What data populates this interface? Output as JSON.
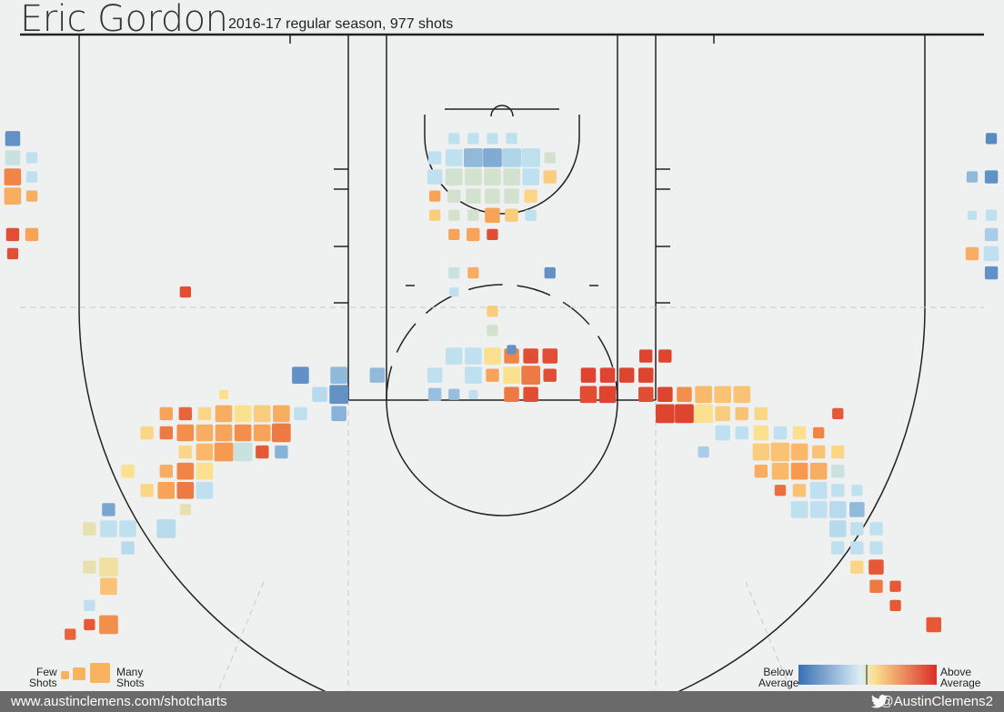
{
  "header": {
    "player": "Eric Gordon",
    "subtitle": "2016-17 regular season, 977 shots"
  },
  "legend": {
    "few": "Few\nShots",
    "many": "Many\nShots",
    "below": "Below\nAverage",
    "above": "Above\nAverage"
  },
  "footer": {
    "url": "www.austinclemens.com/shotcharts",
    "handle": "@AustinClemens2"
  },
  "colors": {
    "background": "#eff0f0",
    "scale": [
      "#3a6fb4",
      "#bfe1ef",
      "#fbe08f",
      "#d92e27"
    ]
  },
  "chart_data": {
    "type": "heatmap",
    "description_units": "court feet; x from -25 (left sideline) to 25, y from -5.25 (baseline) upward; size 1-5 = shot volume, value -1 (below avg) to 1 (above avg)",
    "bins": [
      {
        "x": -22.5,
        "y": 27.75,
        "s": 1.5,
        "v": 0.75
      },
      {
        "x": -21.5,
        "y": 27.25,
        "s": 1.5,
        "v": 0.8
      },
      {
        "x": -20.5,
        "y": 27.25,
        "s": 3.5,
        "v": 0.55
      },
      {
        "x": -21.5,
        "y": 26.25,
        "s": 1.5,
        "v": -0.15
      },
      {
        "x": -20.5,
        "y": 25.25,
        "s": 3.0,
        "v": 0.3
      },
      {
        "x": -21.5,
        "y": 24.25,
        "s": 2.0,
        "v": 0.05
      },
      {
        "x": -20.5,
        "y": 24.25,
        "s": 3.5,
        "v": 0.1
      },
      {
        "x": -19.5,
        "y": 23.25,
        "s": 2.0,
        "v": -0.2
      },
      {
        "x": -21.5,
        "y": 22.25,
        "s": 2.0,
        "v": 0.05
      },
      {
        "x": -20.5,
        "y": 22.25,
        "s": 3.0,
        "v": -0.15
      },
      {
        "x": -19.5,
        "y": 22.25,
        "s": 3.0,
        "v": -0.15
      },
      {
        "x": -20.5,
        "y": 21.25,
        "s": 2.0,
        "v": -0.6
      },
      {
        "x": -17.5,
        "y": 22.25,
        "s": 3.5,
        "v": -0.2
      },
      {
        "x": -16.5,
        "y": 21.25,
        "s": 1.5,
        "v": 0.05
      },
      {
        "x": -18.5,
        "y": 20.25,
        "s": 2.0,
        "v": 0.2
      },
      {
        "x": -17.5,
        "y": 20.25,
        "s": 3.0,
        "v": 0.45
      },
      {
        "x": -16.5,
        "y": 20.25,
        "s": 3.0,
        "v": 0.65
      },
      {
        "x": -15.5,
        "y": 20.25,
        "s": 3.0,
        "v": -0.15
      },
      {
        "x": -19.5,
        "y": 19.25,
        "s": 2.0,
        "v": 0.15
      },
      {
        "x": -17.5,
        "y": 19.25,
        "s": 2.0,
        "v": 0.4
      },
      {
        "x": -16.5,
        "y": 19.25,
        "s": 3.0,
        "v": 0.6
      },
      {
        "x": -15.5,
        "y": 19.25,
        "s": 3.0,
        "v": 0.15
      },
      {
        "x": -16.5,
        "y": 18.25,
        "s": 2.0,
        "v": 0.2
      },
      {
        "x": -15.5,
        "y": 18.25,
        "s": 3.0,
        "v": 0.35
      },
      {
        "x": -14.5,
        "y": 18.25,
        "s": 3.5,
        "v": 0.5
      },
      {
        "x": -13.5,
        "y": 18.25,
        "s": 3.5,
        "v": -0.1
      },
      {
        "x": -12.5,
        "y": 18.25,
        "s": 2.0,
        "v": 0.8
      },
      {
        "x": -11.5,
        "y": 18.25,
        "s": 2.0,
        "v": -0.5
      },
      {
        "x": -18.5,
        "y": 17.25,
        "s": 2.0,
        "v": 0.2
      },
      {
        "x": -17.5,
        "y": 17.25,
        "s": 2.0,
        "v": 0.65
      },
      {
        "x": -16.5,
        "y": 17.25,
        "s": 3.0,
        "v": 0.55
      },
      {
        "x": -15.5,
        "y": 17.25,
        "s": 3.0,
        "v": 0.4
      },
      {
        "x": -14.5,
        "y": 17.25,
        "s": 3.0,
        "v": 0.45
      },
      {
        "x": -13.5,
        "y": 17.25,
        "s": 3.0,
        "v": 0.55
      },
      {
        "x": -12.5,
        "y": 17.25,
        "s": 3.0,
        "v": 0.45
      },
      {
        "x": -11.5,
        "y": 17.25,
        "s": 3.5,
        "v": 0.65
      },
      {
        "x": -17.5,
        "y": 16.25,
        "s": 2.0,
        "v": 0.45
      },
      {
        "x": -16.5,
        "y": 16.25,
        "s": 2.0,
        "v": 0.75
      },
      {
        "x": -15.5,
        "y": 16.25,
        "s": 2.0,
        "v": 0.2
      },
      {
        "x": -14.5,
        "y": 16.25,
        "s": 3.0,
        "v": 0.4
      },
      {
        "x": -13.5,
        "y": 16.25,
        "s": 3.0,
        "v": 0.15
      },
      {
        "x": -12.5,
        "y": 16.25,
        "s": 3.0,
        "v": 0.25
      },
      {
        "x": -11.5,
        "y": 16.25,
        "s": 3.0,
        "v": 0.4
      },
      {
        "x": -10.5,
        "y": 16.25,
        "s": 2.0,
        "v": -0.15
      },
      {
        "x": -14.5,
        "y": 15.25,
        "s": 1.0,
        "v": 0.15
      },
      {
        "x": -8.5,
        "y": 16.25,
        "s": 2.5,
        "v": -0.5
      },
      {
        "x": -9.5,
        "y": 15.25,
        "s": 2.5,
        "v": -0.2
      },
      {
        "x": -8.5,
        "y": 15.25,
        "s": 3.5,
        "v": -0.75
      },
      {
        "x": -8.5,
        "y": 14.25,
        "s": 3.0,
        "v": -0.45
      },
      {
        "x": -6.5,
        "y": 14.25,
        "s": 2.5,
        "v": -0.45
      },
      {
        "x": -10.5,
        "y": 14.25,
        "s": 3.0,
        "v": -0.75
      },
      {
        "x": -3.5,
        "y": 15.25,
        "s": 2.0,
        "v": -0.4
      },
      {
        "x": -2.5,
        "y": 15.25,
        "s": 1.5,
        "v": -0.4
      },
      {
        "x": -1.5,
        "y": 15.25,
        "s": 1.0,
        "v": -0.15
      },
      {
        "x": -3.5,
        "y": 14.25,
        "s": 2.5,
        "v": -0.15
      },
      {
        "x": -1.5,
        "y": 14.25,
        "s": 3.0,
        "v": -0.15
      },
      {
        "x": -0.5,
        "y": 14.25,
        "s": 2.0,
        "v": 0.45
      },
      {
        "x": 0.5,
        "y": 14.25,
        "s": 3.0,
        "v": 0.15
      },
      {
        "x": 1.5,
        "y": 14.25,
        "s": 3.5,
        "v": 0.65
      },
      {
        "x": 2.5,
        "y": 14.25,
        "s": 2.0,
        "v": 0.85
      },
      {
        "x": -2.5,
        "y": 13.25,
        "s": 3.0,
        "v": -0.15
      },
      {
        "x": -1.5,
        "y": 13.25,
        "s": 3.0,
        "v": -0.15
      },
      {
        "x": -0.5,
        "y": 13.25,
        "s": 3.0,
        "v": 0.15
      },
      {
        "x": 0.5,
        "y": 13.25,
        "s": 2.5,
        "v": 0.6
      },
      {
        "x": 1.5,
        "y": 13.25,
        "s": 2.5,
        "v": 0.85
      },
      {
        "x": 2.5,
        "y": 13.25,
        "s": 2.5,
        "v": 0.85
      },
      {
        "x": 0.5,
        "y": 15.25,
        "s": 2.5,
        "v": 0.65
      },
      {
        "x": 1.5,
        "y": 15.25,
        "s": 2.5,
        "v": 0.85
      },
      {
        "x": 4.5,
        "y": 15.25,
        "s": 3.0,
        "v": 0.85
      },
      {
        "x": 5.5,
        "y": 15.25,
        "s": 3.0,
        "v": 0.9
      },
      {
        "x": 4.5,
        "y": 14.25,
        "s": 2.5,
        "v": 0.9
      },
      {
        "x": 5.5,
        "y": 14.25,
        "s": 2.5,
        "v": 0.9
      },
      {
        "x": 6.5,
        "y": 14.25,
        "s": 2.5,
        "v": 0.9
      },
      {
        "x": 7.5,
        "y": 14.25,
        "s": 2.5,
        "v": 0.9
      },
      {
        "x": 7.5,
        "y": 15.25,
        "s": 2.5,
        "v": 0.85
      },
      {
        "x": 7.5,
        "y": 13.25,
        "s": 2.0,
        "v": 0.9
      },
      {
        "x": 8.5,
        "y": 13.25,
        "s": 2.0,
        "v": 0.9
      },
      {
        "x": 8.5,
        "y": 16.25,
        "s": 3.5,
        "v": 0.9
      },
      {
        "x": 9.5,
        "y": 16.25,
        "s": 3.5,
        "v": 0.9
      },
      {
        "x": 10.5,
        "y": 16.25,
        "s": 3.5,
        "v": 0.15
      },
      {
        "x": 11.5,
        "y": 16.25,
        "s": 2.5,
        "v": 0.25
      },
      {
        "x": 12.5,
        "y": 16.25,
        "s": 2.0,
        "v": 0.3
      },
      {
        "x": 13.5,
        "y": 16.25,
        "s": 2.0,
        "v": 0.2
      },
      {
        "x": 10.5,
        "y": 15.25,
        "s": 3.0,
        "v": 0.35
      },
      {
        "x": 11.5,
        "y": 15.25,
        "s": 3.0,
        "v": 0.3
      },
      {
        "x": 12.5,
        "y": 15.25,
        "s": 3.0,
        "v": 0.3
      },
      {
        "x": 9.5,
        "y": 15.25,
        "s": 2.5,
        "v": 0.55
      },
      {
        "x": 8.5,
        "y": 15.25,
        "s": 2.5,
        "v": 0.9
      },
      {
        "x": 11.5,
        "y": 17.25,
        "s": 2.5,
        "v": -0.15
      },
      {
        "x": 12.5,
        "y": 17.25,
        "s": 2.0,
        "v": -0.15
      },
      {
        "x": 13.5,
        "y": 17.25,
        "s": 2.5,
        "v": 0.15
      },
      {
        "x": 14.5,
        "y": 17.25,
        "s": 2.0,
        "v": -0.15
      },
      {
        "x": 15.5,
        "y": 17.25,
        "s": 2.0,
        "v": 0.15
      },
      {
        "x": 16.5,
        "y": 17.25,
        "s": 1.5,
        "v": 0.6
      },
      {
        "x": 17.5,
        "y": 16.25,
        "s": 1.5,
        "v": 0.8
      },
      {
        "x": 10.5,
        "y": 18.25,
        "s": 1.5,
        "v": -0.3
      },
      {
        "x": 13.5,
        "y": 18.25,
        "s": 3.0,
        "v": 0.25
      },
      {
        "x": 14.5,
        "y": 18.25,
        "s": 3.5,
        "v": 0.3
      },
      {
        "x": 15.5,
        "y": 18.25,
        "s": 3.0,
        "v": 0.35
      },
      {
        "x": 16.5,
        "y": 18.25,
        "s": 2.0,
        "v": 0.3
      },
      {
        "x": 17.5,
        "y": 18.25,
        "s": 2.0,
        "v": 0.2
      },
      {
        "x": 13.5,
        "y": 19.25,
        "s": 2.0,
        "v": 0.4
      },
      {
        "x": 14.5,
        "y": 19.25,
        "s": 3.0,
        "v": 0.35
      },
      {
        "x": 15.5,
        "y": 19.25,
        "s": 3.0,
        "v": 0.5
      },
      {
        "x": 16.5,
        "y": 19.25,
        "s": 3.0,
        "v": 0.4
      },
      {
        "x": 17.5,
        "y": 19.25,
        "s": 2.0,
        "v": -0.1
      },
      {
        "x": 14.5,
        "y": 20.25,
        "s": 1.5,
        "v": 0.7
      },
      {
        "x": 15.5,
        "y": 20.25,
        "s": 2.0,
        "v": 0.3
      },
      {
        "x": 16.5,
        "y": 20.25,
        "s": 3.0,
        "v": -0.15
      },
      {
        "x": 17.5,
        "y": 20.25,
        "s": 2.0,
        "v": -0.15
      },
      {
        "x": 15.5,
        "y": 21.25,
        "s": 3.0,
        "v": -0.15
      },
      {
        "x": 16.5,
        "y": 21.25,
        "s": 3.0,
        "v": -0.15
      },
      {
        "x": 17.5,
        "y": 21.25,
        "s": 3.0,
        "v": -0.2
      },
      {
        "x": 18.5,
        "y": 21.25,
        "s": 2.5,
        "v": -0.45
      },
      {
        "x": 18.5,
        "y": 20.25,
        "s": 1.5,
        "v": -0.15
      },
      {
        "x": 17.5,
        "y": 22.25,
        "s": 3.0,
        "v": -0.2
      },
      {
        "x": 18.5,
        "y": 22.25,
        "s": 2.0,
        "v": -0.15
      },
      {
        "x": 19.5,
        "y": 22.25,
        "s": 2.0,
        "v": -0.15
      },
      {
        "x": 17.5,
        "y": 23.25,
        "s": 2.0,
        "v": -0.15
      },
      {
        "x": 18.5,
        "y": 23.25,
        "s": 2.0,
        "v": -0.15
      },
      {
        "x": 19.5,
        "y": 23.25,
        "s": 2.0,
        "v": -0.15
      },
      {
        "x": 18.5,
        "y": 24.25,
        "s": 2.0,
        "v": 0.2
      },
      {
        "x": 19.5,
        "y": 24.25,
        "s": 2.5,
        "v": 0.8
      },
      {
        "x": 19.5,
        "y": 25.25,
        "s": 2.0,
        "v": 0.65
      },
      {
        "x": 20.5,
        "y": 25.25,
        "s": 1.5,
        "v": 0.8
      },
      {
        "x": 20.5,
        "y": 26.25,
        "s": 1.5,
        "v": 0.8
      },
      {
        "x": 22.5,
        "y": 27.25,
        "s": 2.5,
        "v": 0.8
      },
      {
        "x": -24.5,
        "y": 31.25,
        "s": 1.5,
        "v": 0.3
      }
    ],
    "close_bins": [
      {
        "x": -25.5,
        "y": 1.25,
        "s": 2.5,
        "v": -0.75
      },
      {
        "x": -25.5,
        "y": 2.25,
        "s": 2.5,
        "v": -0.1
      },
      {
        "x": -24.5,
        "y": 2.25,
        "s": 1.5,
        "v": -0.15
      },
      {
        "x": -25.5,
        "y": 3.25,
        "s": 3.0,
        "v": 0.6
      },
      {
        "x": -24.5,
        "y": 3.25,
        "s": 1.5,
        "v": -0.15
      },
      {
        "x": -26.5,
        "y": 4.25,
        "s": 2.0,
        "v": 0.5
      },
      {
        "x": -25.5,
        "y": 4.25,
        "s": 3.0,
        "v": 0.4
      },
      {
        "x": -24.5,
        "y": 4.25,
        "s": 1.5,
        "v": 0.4
      },
      {
        "x": -25.5,
        "y": 6.25,
        "s": 2.0,
        "v": 0.85
      },
      {
        "x": -24.5,
        "y": 6.25,
        "s": 2.0,
        "v": 0.45
      },
      {
        "x": -25.5,
        "y": 7.25,
        "s": 1.5,
        "v": 0.85
      },
      {
        "x": 25.5,
        "y": 1.25,
        "s": 1.5,
        "v": -0.8
      },
      {
        "x": 24.5,
        "y": 3.25,
        "s": 1.5,
        "v": -0.45
      },
      {
        "x": 25.5,
        "y": 3.25,
        "s": 2.0,
        "v": -0.75
      },
      {
        "x": 24.5,
        "y": 5.25,
        "s": 1.0,
        "v": -0.15
      },
      {
        "x": 25.5,
        "y": 5.25,
        "s": 1.5,
        "v": -0.15
      },
      {
        "x": 26.5,
        "y": 5.25,
        "s": 1.5,
        "v": -0.15
      },
      {
        "x": 25.5,
        "y": 6.25,
        "s": 2.0,
        "v": -0.3
      },
      {
        "x": 26.5,
        "y": 6.25,
        "s": 2.0,
        "v": -0.15
      },
      {
        "x": 24.5,
        "y": 7.25,
        "s": 2.0,
        "v": 0.4
      },
      {
        "x": 25.5,
        "y": 7.25,
        "s": 2.5,
        "v": -0.15
      },
      {
        "x": 25.5,
        "y": 8.25,
        "s": 2.0,
        "v": -0.75
      },
      {
        "x": 26.5,
        "y": 9.25,
        "s": 1.0,
        "v": -0.3
      },
      {
        "x": -16.5,
        "y": 9.25,
        "s": 1.5,
        "v": 0.85
      },
      {
        "x": -2.5,
        "y": 1.25,
        "s": 1.5,
        "v": -0.15
      },
      {
        "x": -1.5,
        "y": 1.25,
        "s": 1.5,
        "v": -0.15
      },
      {
        "x": -0.5,
        "y": 1.25,
        "s": 1.5,
        "v": -0.15
      },
      {
        "x": 0.5,
        "y": 1.25,
        "s": 1.5,
        "v": -0.15
      },
      {
        "x": -3.5,
        "y": 2.25,
        "s": 2.0,
        "v": -0.15
      },
      {
        "x": -2.5,
        "y": 2.25,
        "s": 3.0,
        "v": -0.15
      },
      {
        "x": -1.5,
        "y": 2.25,
        "s": 3.5,
        "v": -0.45
      },
      {
        "x": -0.5,
        "y": 2.25,
        "s": 3.5,
        "v": -0.55
      },
      {
        "x": 0.5,
        "y": 2.25,
        "s": 3.5,
        "v": -0.25
      },
      {
        "x": 1.5,
        "y": 2.25,
        "s": 3.5,
        "v": -0.15
      },
      {
        "x": 2.5,
        "y": 2.25,
        "s": 1.5,
        "v": -0.05
      },
      {
        "x": -3.5,
        "y": 3.25,
        "s": 2.5,
        "v": -0.15
      },
      {
        "x": -2.5,
        "y": 3.25,
        "s": 3.0,
        "v": -0.05
      },
      {
        "x": -1.5,
        "y": 3.25,
        "s": 3.0,
        "v": -0.05
      },
      {
        "x": -0.5,
        "y": 3.25,
        "s": 3.0,
        "v": -0.05
      },
      {
        "x": 0.5,
        "y": 3.25,
        "s": 3.0,
        "v": -0.05
      },
      {
        "x": 1.5,
        "y": 3.25,
        "s": 3.0,
        "v": -0.15
      },
      {
        "x": 2.5,
        "y": 3.25,
        "s": 2.0,
        "v": 0.25
      },
      {
        "x": -3.5,
        "y": 4.25,
        "s": 1.5,
        "v": 0.45
      },
      {
        "x": -2.5,
        "y": 4.25,
        "s": 2.0,
        "v": -0.05
      },
      {
        "x": -1.5,
        "y": 4.25,
        "s": 2.5,
        "v": -0.05
      },
      {
        "x": -0.5,
        "y": 4.25,
        "s": 2.5,
        "v": -0.05
      },
      {
        "x": 0.5,
        "y": 4.25,
        "s": 2.5,
        "v": -0.05
      },
      {
        "x": 1.5,
        "y": 4.25,
        "s": 2.0,
        "v": 0.2
      },
      {
        "x": -3.5,
        "y": 5.25,
        "s": 1.5,
        "v": 0.25
      },
      {
        "x": -2.5,
        "y": 5.25,
        "s": 1.5,
        "v": -0.05
      },
      {
        "x": -1.5,
        "y": 5.25,
        "s": 1.5,
        "v": -0.05
      },
      {
        "x": -0.5,
        "y": 5.25,
        "s": 2.5,
        "v": 0.45
      },
      {
        "x": 0.5,
        "y": 5.25,
        "s": 2.0,
        "v": 0.25
      },
      {
        "x": 1.5,
        "y": 5.25,
        "s": 1.5,
        "v": -0.15
      },
      {
        "x": -2.5,
        "y": 6.25,
        "s": 1.5,
        "v": 0.45
      },
      {
        "x": -1.5,
        "y": 6.25,
        "s": 2.0,
        "v": 0.45
      },
      {
        "x": -0.5,
        "y": 6.25,
        "s": 1.5,
        "v": 0.85
      },
      {
        "x": 2.5,
        "y": 8.25,
        "s": 1.5,
        "v": -0.75
      },
      {
        "x": -2.5,
        "y": 8.25,
        "s": 1.5,
        "v": -0.1
      },
      {
        "x": -1.5,
        "y": 8.25,
        "s": 1.5,
        "v": 0.4
      },
      {
        "x": -2.5,
        "y": 9.25,
        "s": 1.0,
        "v": -0.15
      },
      {
        "x": -0.5,
        "y": 10.25,
        "s": 1.5,
        "v": 0.25
      },
      {
        "x": -0.5,
        "y": 11.25,
        "s": 1.5,
        "v": -0.05
      },
      {
        "x": 0.5,
        "y": 12.25,
        "s": 1.0,
        "v": -0.75
      }
    ]
  }
}
